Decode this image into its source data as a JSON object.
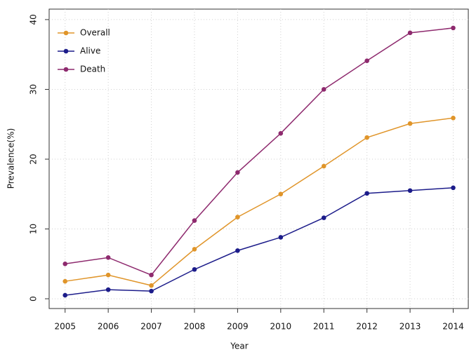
{
  "chart_data": {
    "type": "line",
    "x_label": "Year",
    "y_label": "Prevalence(%)",
    "x": [
      2005,
      2006,
      2007,
      2008,
      2009,
      2010,
      2011,
      2012,
      2013,
      2014
    ],
    "series": [
      {
        "name": "Overall",
        "color": "#e0952a",
        "values": [
          2.5,
          3.4,
          1.9,
          7.1,
          11.7,
          15.0,
          19.0,
          23.1,
          25.1,
          25.9
        ]
      },
      {
        "name": "Alive",
        "color": "#1c1c8a",
        "values": [
          0.5,
          1.3,
          1.1,
          4.2,
          6.9,
          8.8,
          11.6,
          15.1,
          15.5,
          15.9
        ]
      },
      {
        "name": "Death",
        "color": "#8e2a6e",
        "values": [
          5.0,
          5.9,
          3.4,
          11.2,
          18.1,
          23.7,
          30.0,
          34.1,
          38.1,
          38.8
        ]
      }
    ],
    "xlim": [
      2004.63,
      2014.35
    ],
    "ylim": [
      -1.4,
      41.5
    ],
    "xticks": [
      2005,
      2006,
      2007,
      2008,
      2009,
      2010,
      2011,
      2012,
      2013,
      2014
    ],
    "yticks": [
      0,
      10,
      20,
      30,
      40
    ],
    "grid": true,
    "legend": "top-left"
  }
}
